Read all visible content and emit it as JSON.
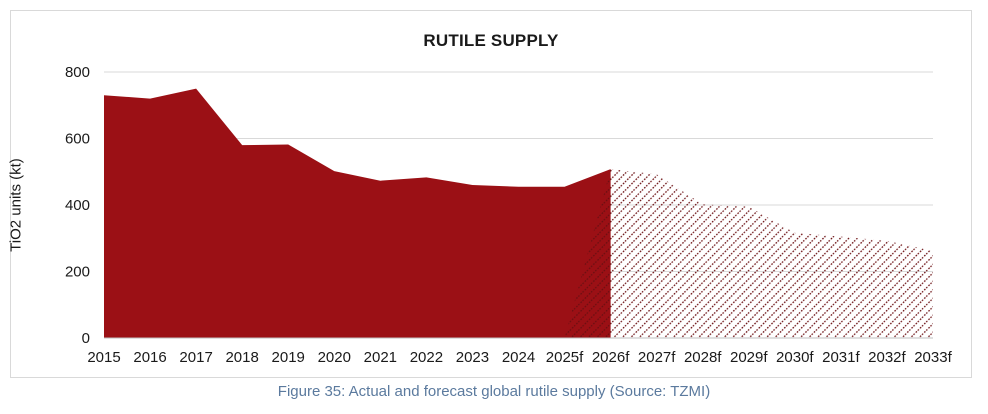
{
  "chart_data": {
    "type": "area",
    "title": "RUTILE SUPPLY",
    "xlabel": "",
    "ylabel": "TiO2 units (kt)",
    "ylim": [
      0,
      800
    ],
    "yticks": [
      0,
      200,
      400,
      600,
      800
    ],
    "grid": true,
    "categories": [
      "2015",
      "2016",
      "2017",
      "2018",
      "2019",
      "2020",
      "2021",
      "2022",
      "2023",
      "2024",
      "2025f",
      "2026f",
      "2027f",
      "2028f",
      "2029f",
      "2030f",
      "2031f",
      "2032f",
      "2033f"
    ],
    "series": [
      {
        "style": "solid",
        "color": "#9b1015",
        "values": [
          730,
          720,
          750,
          580,
          582,
          502,
          473,
          483,
          460,
          455,
          455,
          508,
          null,
          null,
          null,
          null,
          null,
          null,
          null
        ]
      },
      {
        "style": "hatched",
        "color": "#6b0f12",
        "values": [
          null,
          null,
          null,
          null,
          null,
          null,
          null,
          null,
          null,
          null,
          0,
          508,
          492,
          402,
          395,
          316,
          305,
          292,
          262
        ]
      }
    ]
  },
  "caption": "Figure 35: Actual and forecast global rutile supply (Source: TZMI)"
}
